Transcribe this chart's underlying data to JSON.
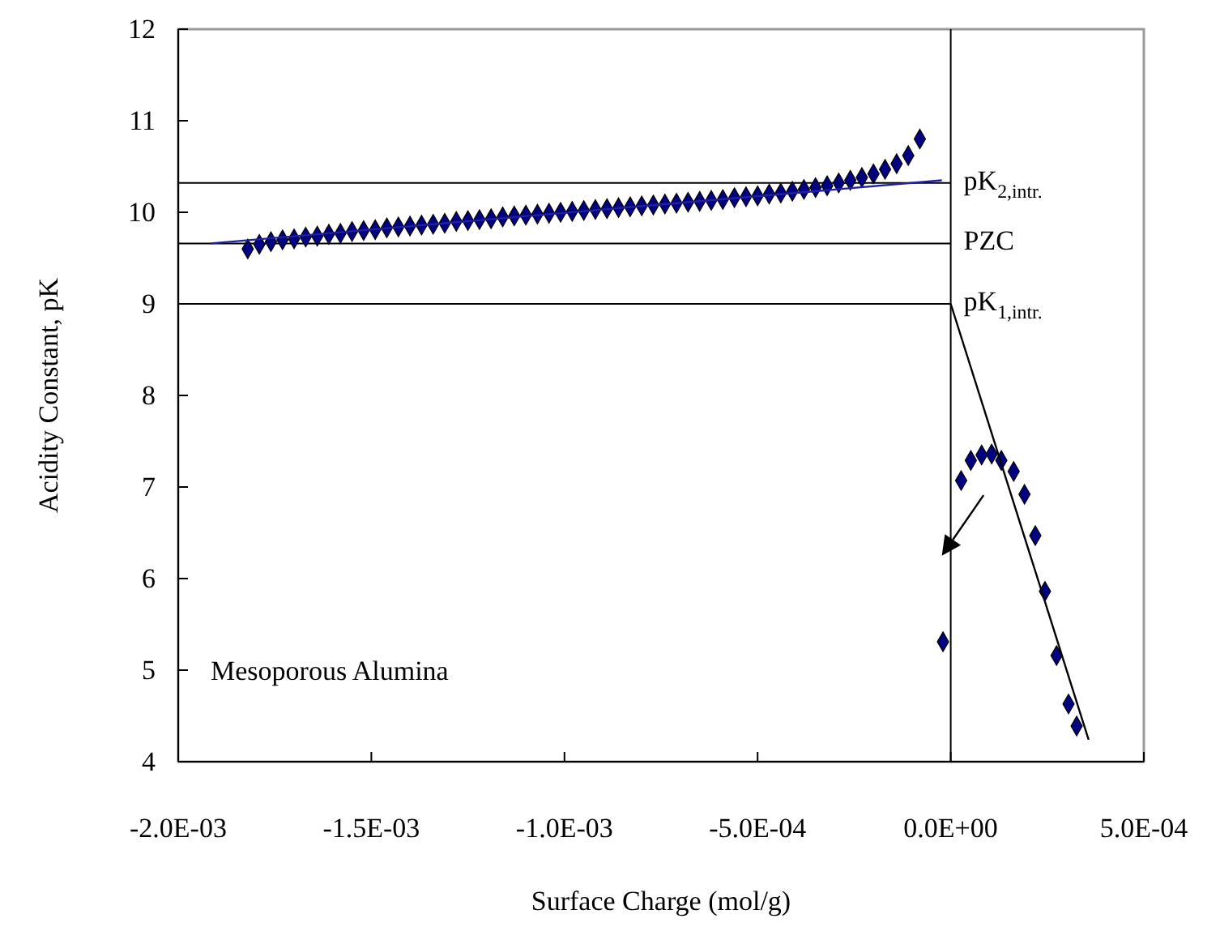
{
  "chart_data": {
    "type": "scatter",
    "xlabel": "Surface Charge (mol/g)",
    "ylabel": "Acidity Constant, pK",
    "xlim": [
      -0.002,
      0.0005
    ],
    "xticks": [
      {
        "value": -0.002,
        "label": "-2.0E-03"
      },
      {
        "value": -0.0015,
        "label": "-1.5E-03"
      },
      {
        "value": -0.001,
        "label": "-1.0E-03"
      },
      {
        "value": -0.0005,
        "label": "-5.0E-04"
      },
      {
        "value": 0,
        "label": "0.0E+00"
      },
      {
        "value": 0.0005,
        "label": "5.0E-04"
      }
    ],
    "ylim": [
      4,
      12
    ],
    "yticks": [
      4,
      5,
      6,
      7,
      8,
      9,
      10,
      11,
      12
    ],
    "grid": false,
    "marker": "diamond",
    "series": [
      {
        "color": "#000080",
        "x": [
          -0.00182,
          -0.00179,
          -0.00176,
          -0.00173,
          -0.0017,
          -0.00167,
          -0.00164,
          -0.00161,
          -0.00158,
          -0.00155,
          -0.00152,
          -0.00149,
          -0.00146,
          -0.00143,
          -0.0014,
          -0.00137,
          -0.00134,
          -0.00131,
          -0.00128,
          -0.00125,
          -0.00122,
          -0.00119,
          -0.00116,
          -0.00113,
          -0.0011,
          -0.00107,
          -0.00104,
          -0.00101,
          -0.00098,
          -0.00095,
          -0.00092,
          -0.00089,
          -0.00086,
          -0.00083,
          -0.0008,
          -0.00077,
          -0.00074,
          -0.00071,
          -0.00068,
          -0.00065,
          -0.00062,
          -0.00059,
          -0.00056,
          -0.00053,
          -0.0005,
          -0.00047,
          -0.00044,
          -0.00041,
          -0.00038,
          -0.00035,
          -0.00032,
          -0.00029,
          -0.00026,
          -0.00023,
          -0.0002,
          -0.00017,
          -0.00014,
          -0.00011,
          -8e-05,
          -2e-05,
          2.7e-05,
          5.2e-05,
          8e-05,
          0.000106,
          0.000131,
          0.000163,
          0.000191,
          0.000219,
          0.000244,
          0.000274,
          0.000305,
          0.000326
        ],
        "values": [
          9.6,
          9.65,
          9.68,
          9.7,
          9.71,
          9.73,
          9.74,
          9.76,
          9.77,
          9.79,
          9.8,
          9.81,
          9.83,
          9.84,
          9.85,
          9.86,
          9.87,
          9.88,
          9.9,
          9.91,
          9.92,
          9.93,
          9.95,
          9.96,
          9.97,
          9.98,
          9.99,
          10.0,
          10.01,
          10.02,
          10.03,
          10.04,
          10.05,
          10.06,
          10.07,
          10.08,
          10.09,
          10.1,
          10.11,
          10.12,
          10.13,
          10.14,
          10.16,
          10.17,
          10.18,
          10.2,
          10.21,
          10.23,
          10.25,
          10.27,
          10.29,
          10.32,
          10.35,
          10.38,
          10.42,
          10.47,
          10.53,
          10.62,
          10.8,
          5.31,
          7.07,
          7.29,
          7.35,
          7.36,
          7.29,
          7.17,
          6.92,
          6.47,
          5.86,
          5.16,
          4.63,
          4.39
        ]
      },
      {
        "type": "line",
        "color": "#2020a0",
        "marker": "none",
        "x": [
          -0.001915,
          -2.3e-05
        ],
        "values": [
          9.66,
          10.35
        ]
      },
      {
        "type": "line",
        "color": "#000000",
        "marker": "none",
        "x": [
          0,
          0.000357
        ],
        "values": [
          9.0,
          4.24
        ]
      }
    ],
    "ref_lines": [
      {
        "axis": "x",
        "value": 0,
        "color": "#000000"
      },
      {
        "axis": "y",
        "value": 10.32,
        "label": "pK$_{2,intr.}$",
        "color": "#000000"
      },
      {
        "axis": "y",
        "value": 9.66,
        "label": "PZC",
        "color": "#000000"
      },
      {
        "axis": "y",
        "value": 9.0,
        "label": "pK$_{1,intr.}$",
        "color": "#000000"
      }
    ],
    "annotations": [
      "Mesoporous Alumina"
    ]
  }
}
